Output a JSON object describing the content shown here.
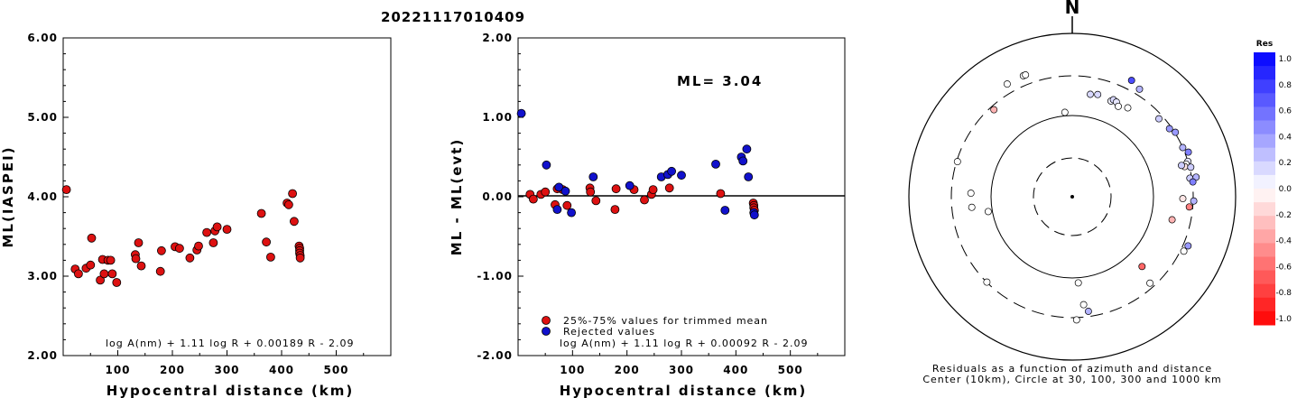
{
  "title": "20221117010409",
  "chart_data": [
    {
      "id": "ml-iaspei",
      "type": "scatter",
      "xlabel": "Hypocentral distance (km)",
      "ylabel": "ML(IASPEI)",
      "xlim": [
        0,
        600
      ],
      "ylim": [
        2.0,
        6.0
      ],
      "x_ticks": [
        100,
        200,
        300,
        400,
        500
      ],
      "x_tick_labels": [
        "100",
        "200",
        "300",
        "400",
        "500"
      ],
      "y_ticks": [
        2.0,
        3.0,
        4.0,
        5.0,
        6.0
      ],
      "y_tick_labels": [
        "2.00",
        "3.00",
        "4.00",
        "5.00",
        "6.00"
      ],
      "formula": "log A(nm) + 1.11 log R + 0.00189 R - 2.09",
      "series": [
        {
          "color": "#dd1111",
          "points": [
            [
              6,
              4.09
            ],
            [
              22,
              3.09
            ],
            [
              28,
              3.03
            ],
            [
              42,
              3.1
            ],
            [
              50,
              3.14
            ],
            [
              52,
              3.48
            ],
            [
              68,
              2.95
            ],
            [
              72,
              3.21
            ],
            [
              75,
              3.03
            ],
            [
              82,
              3.2
            ],
            [
              87,
              3.2
            ],
            [
              90,
              3.03
            ],
            [
              98,
              2.92
            ],
            [
              132,
              3.27
            ],
            [
              133,
              3.22
            ],
            [
              138,
              3.42
            ],
            [
              143,
              3.13
            ],
            [
              178,
              3.06
            ],
            [
              180,
              3.32
            ],
            [
              205,
              3.37
            ],
            [
              213,
              3.35
            ],
            [
              232,
              3.23
            ],
            [
              245,
              3.33
            ],
            [
              248,
              3.38
            ],
            [
              263,
              3.55
            ],
            [
              275,
              3.42
            ],
            [
              278,
              3.57
            ],
            [
              282,
              3.62
            ],
            [
              300,
              3.59
            ],
            [
              363,
              3.79
            ],
            [
              372,
              3.43
            ],
            [
              380,
              3.24
            ],
            [
              410,
              3.92
            ],
            [
              413,
              3.9
            ],
            [
              420,
              4.04
            ],
            [
              423,
              3.69
            ],
            [
              432,
              3.38
            ],
            [
              433,
              3.35
            ],
            [
              433,
              3.32
            ],
            [
              433,
              3.29
            ],
            [
              434,
              3.26
            ],
            [
              434,
              3.23
            ]
          ]
        }
      ]
    },
    {
      "id": "ml-residuals",
      "type": "scatter",
      "xlabel": "Hypocentral distance (km)",
      "ylabel": "ML - ML(evt)",
      "xlim": [
        0,
        600
      ],
      "ylim": [
        -2.0,
        2.0
      ],
      "x_ticks": [
        100,
        200,
        300,
        400,
        500
      ],
      "x_tick_labels": [
        "100",
        "200",
        "300",
        "400",
        "500"
      ],
      "y_ticks": [
        -2.0,
        -1.0,
        0.0,
        1.0,
        2.0
      ],
      "y_tick_labels": [
        "-2.00",
        "-1.00",
        "0.00",
        "1.00",
        "2.00"
      ],
      "annotation": "ML= 3.04",
      "formula": "log A(nm) + 1.11 log R + 0.00092 R - 2.09",
      "series": [
        {
          "name": "25%-75% values for trimmed mean",
          "color": "#dd1111",
          "points": [
            [
              22,
              0.03
            ],
            [
              28,
              -0.03
            ],
            [
              42,
              0.03
            ],
            [
              50,
              0.06
            ],
            [
              68,
              -0.1
            ],
            [
              72,
              0.1
            ],
            [
              82,
              0.09
            ],
            [
              90,
              -0.11
            ],
            [
              132,
              0.11
            ],
            [
              133,
              0.06
            ],
            [
              143,
              -0.05
            ],
            [
              178,
              -0.16
            ],
            [
              180,
              0.1
            ],
            [
              213,
              0.09
            ],
            [
              232,
              -0.04
            ],
            [
              245,
              0.03
            ],
            [
              248,
              0.09
            ],
            [
              278,
              0.11
            ],
            [
              372,
              0.04
            ],
            [
              432,
              -0.08
            ],
            [
              433,
              -0.11
            ],
            [
              433,
              -0.14
            ],
            [
              434,
              -0.17
            ]
          ]
        },
        {
          "name": "Rejected values",
          "color": "#1111cc",
          "points": [
            [
              6,
              1.05
            ],
            [
              52,
              0.4
            ],
            [
              72,
              -0.16
            ],
            [
              75,
              0.12
            ],
            [
              87,
              0.07
            ],
            [
              98,
              -0.2
            ],
            [
              138,
              0.25
            ],
            [
              205,
              0.14
            ],
            [
              263,
              0.25
            ],
            [
              275,
              0.28
            ],
            [
              282,
              0.32
            ],
            [
              300,
              0.27
            ],
            [
              363,
              0.41
            ],
            [
              380,
              -0.17
            ],
            [
              410,
              0.5
            ],
            [
              413,
              0.45
            ],
            [
              420,
              0.6
            ],
            [
              423,
              0.25
            ],
            [
              433,
              -0.2
            ],
            [
              434,
              -0.23
            ]
          ]
        }
      ]
    },
    {
      "id": "azimuth-residuals",
      "type": "polar-scatter",
      "north_label": "N",
      "caption_line1": "Residuals as a function of azimuth and distance",
      "caption_line2": "Center (10km), Circle at 30, 100, 300 and 1000 km",
      "rings_km": [
        30,
        100,
        300,
        1000
      ],
      "colorbar": {
        "title": "Res",
        "min": -1.0,
        "max": 1.0,
        "tick_labels": [
          "1.0",
          "0.8",
          "0.6",
          "0.4",
          "0.2",
          "0.0",
          "-0.2",
          "-0.4",
          "-0.6",
          "-0.8",
          "-1.0"
        ]
      },
      "points": [
        {
          "az": 338,
          "dist_km": 394,
          "res": 0.0
        },
        {
          "az": 339,
          "dist_km": 394,
          "res": 0.0
        },
        {
          "az": 330,
          "dist_km": 390,
          "res": 0.0
        },
        {
          "az": 318,
          "dist_km": 270,
          "res": -0.3
        },
        {
          "az": 27,
          "dist_km": 394,
          "res": 0.7
        },
        {
          "az": 32,
          "dist_km": 355,
          "res": 0.3
        },
        {
          "az": 10,
          "dist_km": 188,
          "res": 0.15
        },
        {
          "az": 14,
          "dist_km": 195,
          "res": 0.15
        },
        {
          "az": 22,
          "dist_km": 184,
          "res": 0.05
        },
        {
          "az": 23,
          "dist_km": 195,
          "res": 0.15
        },
        {
          "az": 25,
          "dist_km": 190,
          "res": 0.1
        },
        {
          "az": 27,
          "dist_km": 175,
          "res": 0.0
        },
        {
          "az": 32,
          "dist_km": 192,
          "res": 0.0
        },
        {
          "az": 355,
          "dist_km": 110,
          "res": 0.0
        },
        {
          "az": 48,
          "dist_km": 266,
          "res": 0.2
        },
        {
          "az": 55,
          "dist_km": 282,
          "res": 0.4
        },
        {
          "az": 58,
          "dist_km": 305,
          "res": 0.4
        },
        {
          "az": 66,
          "dist_km": 300,
          "res": 0.3
        },
        {
          "az": 69,
          "dist_km": 330,
          "res": 0.5
        },
        {
          "az": 73,
          "dist_km": 300,
          "res": 0.1
        },
        {
          "az": 74,
          "dist_km": 280,
          "res": 0.0
        },
        {
          "az": 75,
          "dist_km": 264,
          "res": -0.1
        },
        {
          "az": 76,
          "dist_km": 310,
          "res": 0.2
        },
        {
          "az": 74,
          "dist_km": 245,
          "res": 0.2
        },
        {
          "az": 81,
          "dist_km": 285,
          "res": 0.2
        },
        {
          "az": 81,
          "dist_km": 340,
          "res": 0.3
        },
        {
          "az": 83,
          "dist_km": 305,
          "res": 0.5
        },
        {
          "az": 91,
          "dist_km": 225,
          "res": -0.1
        },
        {
          "az": 92,
          "dist_km": 305,
          "res": 0.3
        },
        {
          "az": 95,
          "dist_km": 273,
          "res": -0.5
        },
        {
          "az": 103,
          "dist_km": 180,
          "res": -0.3
        },
        {
          "az": 113,
          "dist_km": 344,
          "res": 0.4
        },
        {
          "az": 116,
          "dist_km": 328,
          "res": 0.0
        },
        {
          "az": 135,
          "dist_km": 162,
          "res": -0.6
        },
        {
          "az": 138,
          "dist_km": 263,
          "res": 0.0
        },
        {
          "az": 176,
          "dist_km": 115,
          "res": 0.0
        },
        {
          "az": 174,
          "dist_km": 213,
          "res": 0.0
        },
        {
          "az": 172,
          "dist_km": 260,
          "res": 0.3
        },
        {
          "az": 178,
          "dist_km": 320,
          "res": 0.0
        },
        {
          "az": 225,
          "dist_km": 298,
          "res": 0.0
        },
        {
          "az": 260,
          "dist_km": 112,
          "res": 0.0
        },
        {
          "az": 264,
          "dist_km": 173,
          "res": 0.0
        },
        {
          "az": 272,
          "dist_km": 175,
          "res": 0.0
        },
        {
          "az": 287,
          "dist_km": 293,
          "res": 0.0
        }
      ]
    }
  ]
}
